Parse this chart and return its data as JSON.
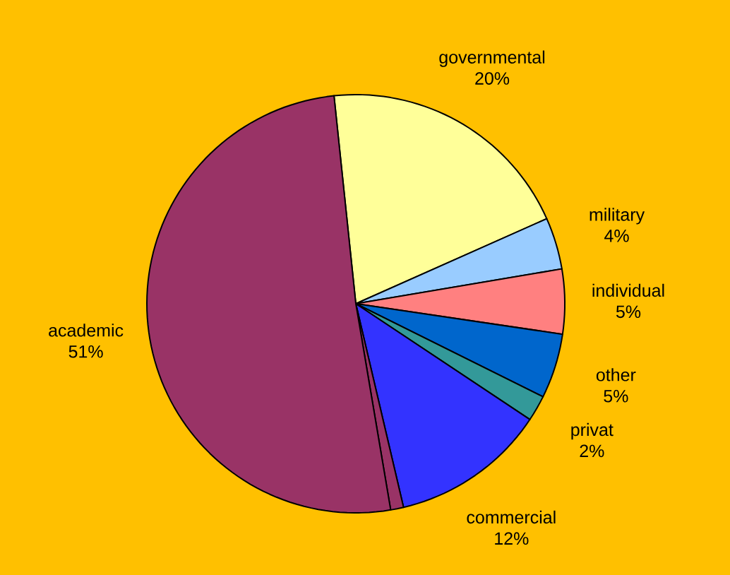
{
  "chart_data": {
    "type": "pie",
    "categories": [
      "governmental",
      "military",
      "individual",
      "other",
      "privat",
      "commercial",
      null,
      "academic"
    ],
    "values": [
      20,
      4,
      5,
      5,
      2,
      12,
      1,
      51
    ],
    "value_labels": [
      "20%",
      "4%",
      "5%",
      "5%",
      "2%",
      "12%",
      null,
      "51%"
    ],
    "colors": [
      "#ffff99",
      "#99ccff",
      "#ff8080",
      "#0066cc",
      "#339999",
      "#3333ff",
      "#993366",
      "#993366"
    ]
  }
}
